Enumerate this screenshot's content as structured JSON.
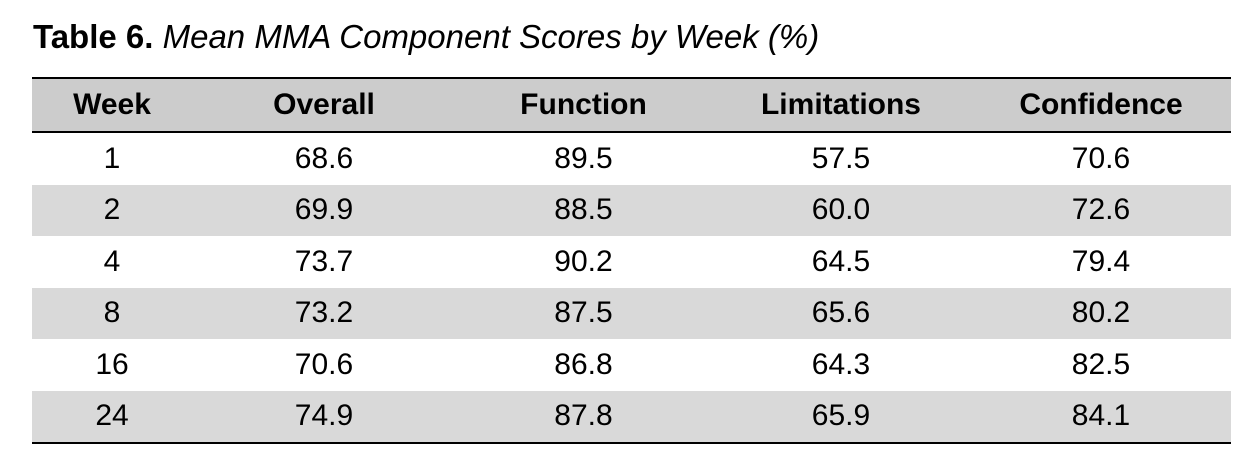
{
  "caption": {
    "label": "Table 6.",
    "title": "Mean MMA Component Scores by Week (%)"
  },
  "colors": {
    "header_fill": "#cccccc",
    "stripe_fill": "#d9d9d9",
    "rule": "#000000"
  },
  "table": {
    "headers": [
      "Week",
      "Overall",
      "Function",
      "Limitations",
      "Confidence"
    ],
    "rows": [
      [
        "1",
        "68.6",
        "89.5",
        "57.5",
        "70.6"
      ],
      [
        "2",
        "69.9",
        "88.5",
        "60.0",
        "72.6"
      ],
      [
        "4",
        "73.7",
        "90.2",
        "64.5",
        "79.4"
      ],
      [
        "8",
        "73.2",
        "87.5",
        "65.6",
        "80.2"
      ],
      [
        "16",
        "70.6",
        "86.8",
        "64.3",
        "82.5"
      ],
      [
        "24",
        "74.9",
        "87.8",
        "65.9",
        "84.1"
      ]
    ]
  }
}
